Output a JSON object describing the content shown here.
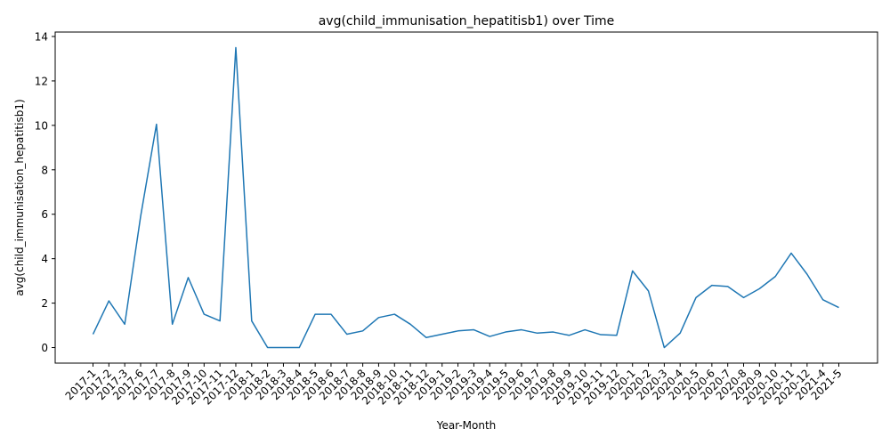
{
  "chart_data": {
    "type": "line",
    "title": "avg(child_immunisation_hepatitisb1) over Time",
    "xlabel": "Year-Month",
    "ylabel": "avg(child_immunisation_hepatitisb1)",
    "ylim": [
      -0.7,
      14.2
    ],
    "yticks": [
      0,
      2,
      4,
      6,
      8,
      10,
      12,
      14
    ],
    "grid": false,
    "line_color": "#1f77b4",
    "categories": [
      "2017-1",
      "2017-2",
      "2017-3",
      "2017-6",
      "2017-7",
      "2017-8",
      "2017-9",
      "2017-10",
      "2017-11",
      "2017-12",
      "2018-1",
      "2018-2",
      "2018-3",
      "2018-4",
      "2018-5",
      "2018-6",
      "2018-7",
      "2018-8",
      "2018-9",
      "2018-10",
      "2018-11",
      "2018-12",
      "2019-1",
      "2019-2",
      "2019-3",
      "2019-4",
      "2019-5",
      "2019-6",
      "2019-7",
      "2019-8",
      "2019-9",
      "2019-10",
      "2019-11",
      "2019-12",
      "2020-1",
      "2020-2",
      "2020-3",
      "2020-4",
      "2020-5",
      "2020-6",
      "2020-7",
      "2020-8",
      "2020-9",
      "2020-10",
      "2020-11",
      "2020-12",
      "2021-4",
      "2021-5"
    ],
    "values": [
      0.6,
      2.1,
      1.05,
      5.9,
      10.05,
      1.05,
      3.15,
      1.5,
      1.2,
      13.5,
      1.2,
      0.0,
      0.0,
      0.0,
      1.5,
      1.5,
      0.6,
      0.75,
      1.35,
      1.5,
      1.05,
      0.45,
      0.6,
      0.75,
      0.8,
      0.5,
      0.7,
      0.8,
      0.65,
      0.7,
      0.55,
      0.8,
      0.58,
      0.55,
      3.45,
      2.55,
      0.0,
      0.65,
      2.25,
      2.8,
      2.75,
      2.25,
      2.65,
      3.2,
      4.25,
      3.3,
      2.15,
      1.8
    ]
  }
}
